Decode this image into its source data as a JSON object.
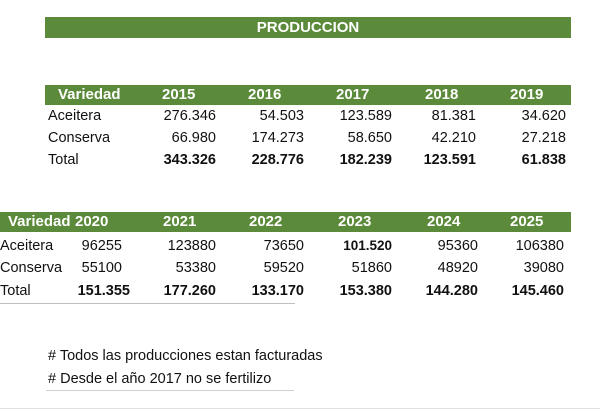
{
  "title": "PRODUCCION",
  "table1": {
    "header": [
      "Variedad",
      "2015",
      "2016",
      "2017",
      "2018",
      "2019"
    ],
    "rows": [
      {
        "label": "Aceitera",
        "values": [
          "276.346",
          "54.503",
          "123.589",
          "81.381",
          "34.620"
        ]
      },
      {
        "label": "Conserva",
        "values": [
          "66.980",
          "174.273",
          "58.650",
          "42.210",
          "27.218"
        ]
      },
      {
        "label": "Total",
        "values": [
          "343.326",
          "228.776",
          "182.239",
          "123.591",
          "61.838"
        ]
      }
    ]
  },
  "table2": {
    "header": [
      "Variedad",
      "2020",
      "2021",
      "2022",
      "2023",
      "2024",
      "2025"
    ],
    "rows": [
      {
        "label": "Aceitera",
        "values": [
          "96255",
          "123880",
          "73650",
          "101.520",
          "95360",
          "106380"
        ]
      },
      {
        "label": "Conserva",
        "values": [
          "55100",
          "53380",
          "59520",
          "51860",
          "48920",
          "39080"
        ]
      },
      {
        "label": "Total",
        "values": [
          "151.355",
          "177.260",
          "133.170",
          "153.380",
          "144.280",
          "145.460"
        ]
      }
    ]
  },
  "notes": [
    "# Todos las producciones estan facturadas",
    "# Desde el año 2017 no se fertilizo"
  ]
}
